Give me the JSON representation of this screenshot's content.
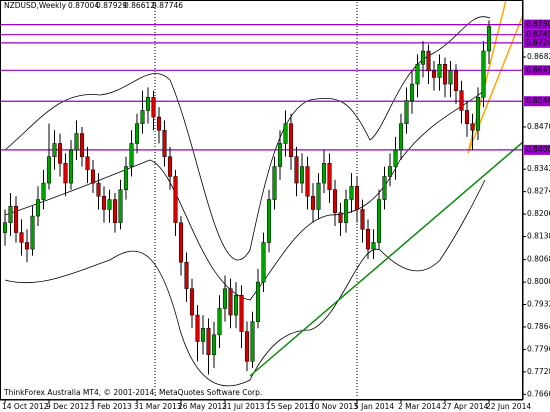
{
  "chart_data": {
    "type": "candlestick",
    "symbol": "NZDUSD,Weekly",
    "quote": {
      "open": 0.87004,
      "high": 0.87929,
      "low": 0.86612,
      "close": 0.87746
    },
    "footer": "ThinkForex Australia MT4, © 2001-2014, MetaQuotes Software Corp.",
    "up_color": "#00a000",
    "down_color": "#d00000",
    "wick_color": "#000000",
    "level_color": "#9900cc",
    "categories": [
      "14 Oct 2012",
      null,
      null,
      null,
      null,
      null,
      null,
      null,
      "9 Dec 2012",
      null,
      null,
      null,
      null,
      null,
      null,
      null,
      "3 Feb 2013",
      null,
      null,
      null,
      null,
      null,
      null,
      null,
      "31 Mar 2013",
      null,
      null,
      null,
      null,
      null,
      null,
      null,
      "26 May 2013",
      null,
      null,
      null,
      null,
      null,
      null,
      null,
      "21 Jul 2013",
      null,
      null,
      null,
      null,
      null,
      null,
      null,
      "15 Sep 2013",
      null,
      null,
      null,
      null,
      null,
      null,
      null,
      "10 Nov 2013",
      null,
      null,
      null,
      null,
      null,
      null,
      null,
      "5 Jan 2014",
      null,
      null,
      null,
      null,
      null,
      null,
      null,
      "2 Mar 2014",
      null,
      null,
      null,
      null,
      null,
      null,
      null,
      "27 Apr 2014",
      null,
      null,
      null,
      null,
      null,
      null,
      null,
      "22 Jun 2014"
    ],
    "open": [
      0.815,
      0.818,
      0.823,
      0.815,
      0.812,
      0.81,
      0.82,
      0.825,
      0.83,
      0.838,
      0.842,
      0.836,
      0.83,
      0.84,
      0.845,
      0.838,
      0.834,
      0.83,
      0.826,
      0.822,
      0.825,
      0.818,
      0.828,
      0.835,
      0.842,
      0.848,
      0.852,
      0.856,
      0.85,
      0.846,
      0.838,
      0.832,
      0.818,
      0.806,
      0.798,
      0.79,
      0.782,
      0.786,
      0.778,
      0.784,
      0.792,
      0.798,
      0.79,
      0.796,
      0.785,
      0.776,
      0.788,
      0.8,
      0.812,
      0.825,
      0.835,
      0.842,
      0.848,
      0.838,
      0.83,
      0.835,
      0.826,
      0.822,
      0.83,
      0.836,
      0.828,
      0.821,
      0.818,
      0.825,
      0.829,
      0.822,
      0.816,
      0.81,
      0.812,
      0.825,
      0.832,
      0.835,
      0.84,
      0.848,
      0.855,
      0.86,
      0.866,
      0.87,
      0.864,
      0.862,
      0.866,
      0.86,
      0.864,
      0.858,
      0.852,
      0.848,
      0.846,
      0.856,
      0.87004
    ],
    "high": [
      0.822,
      0.827,
      0.826,
      0.819,
      0.816,
      0.823,
      0.829,
      0.834,
      0.848,
      0.846,
      0.845,
      0.839,
      0.843,
      0.849,
      0.847,
      0.841,
      0.837,
      0.833,
      0.829,
      0.828,
      0.827,
      0.831,
      0.838,
      0.846,
      0.851,
      0.858,
      0.859,
      0.858,
      0.853,
      0.849,
      0.841,
      0.834,
      0.82,
      0.809,
      0.801,
      0.793,
      0.79,
      0.789,
      0.788,
      0.796,
      0.802,
      0.801,
      0.8,
      0.799,
      0.788,
      0.791,
      0.804,
      0.815,
      0.828,
      0.838,
      0.846,
      0.852,
      0.851,
      0.841,
      0.839,
      0.838,
      0.83,
      0.833,
      0.84,
      0.839,
      0.831,
      0.824,
      0.828,
      0.833,
      0.832,
      0.825,
      0.819,
      0.816,
      0.828,
      0.835,
      0.839,
      0.844,
      0.851,
      0.859,
      0.864,
      0.869,
      0.873,
      0.872,
      0.867,
      0.869,
      0.868,
      0.867,
      0.866,
      0.861,
      0.855,
      0.851,
      0.859,
      0.873,
      0.87929
    ],
    "low": [
      0.811,
      0.814,
      0.812,
      0.808,
      0.806,
      0.808,
      0.817,
      0.822,
      0.828,
      0.834,
      0.832,
      0.826,
      0.828,
      0.837,
      0.835,
      0.83,
      0.827,
      0.822,
      0.818,
      0.818,
      0.815,
      0.816,
      0.825,
      0.832,
      0.839,
      0.845,
      0.848,
      0.846,
      0.842,
      0.835,
      0.828,
      0.814,
      0.802,
      0.794,
      0.786,
      0.776,
      0.778,
      0.772,
      0.774,
      0.78,
      0.788,
      0.786,
      0.786,
      0.78,
      0.773,
      0.774,
      0.786,
      0.797,
      0.809,
      0.822,
      0.831,
      0.838,
      0.834,
      0.826,
      0.827,
      0.822,
      0.818,
      0.819,
      0.827,
      0.824,
      0.817,
      0.814,
      0.815,
      0.821,
      0.818,
      0.812,
      0.807,
      0.807,
      0.81,
      0.822,
      0.829,
      0.831,
      0.837,
      0.845,
      0.851,
      0.856,
      0.862,
      0.86,
      0.858,
      0.858,
      0.856,
      0.856,
      0.854,
      0.848,
      0.844,
      0.84,
      0.843,
      0.853,
      0.86612
    ],
    "close": [
      0.818,
      0.823,
      0.815,
      0.812,
      0.81,
      0.82,
      0.825,
      0.83,
      0.838,
      0.842,
      0.836,
      0.83,
      0.84,
      0.845,
      0.838,
      0.834,
      0.83,
      0.826,
      0.822,
      0.825,
      0.818,
      0.828,
      0.835,
      0.842,
      0.848,
      0.852,
      0.856,
      0.85,
      0.846,
      0.838,
      0.832,
      0.818,
      0.806,
      0.798,
      0.79,
      0.782,
      0.786,
      0.778,
      0.784,
      0.792,
      0.798,
      0.79,
      0.796,
      0.785,
      0.776,
      0.788,
      0.8,
      0.812,
      0.825,
      0.835,
      0.842,
      0.848,
      0.838,
      0.83,
      0.835,
      0.826,
      0.822,
      0.83,
      0.836,
      0.828,
      0.821,
      0.818,
      0.825,
      0.829,
      0.822,
      0.816,
      0.81,
      0.812,
      0.825,
      0.832,
      0.835,
      0.84,
      0.848,
      0.855,
      0.86,
      0.866,
      0.87,
      0.864,
      0.862,
      0.866,
      0.86,
      0.864,
      0.858,
      0.852,
      0.848,
      0.846,
      0.856,
      0.87004,
      0.87746
    ],
    "ylim": [
      0.76487,
      0.88487
    ],
    "yticks": [
      {
        "value": 0.8682,
        "label": "0.86820"
      },
      {
        "value": 0.847,
        "label": "0.84700"
      },
      {
        "value": 0.8342,
        "label": "0.83420"
      },
      {
        "value": 0.8274,
        "label": "0.82740"
      },
      {
        "value": 0.8206,
        "label": "0.82060"
      },
      {
        "value": 0.8138,
        "label": "0.81380"
      },
      {
        "value": 0.8068,
        "label": "0.80680"
      },
      {
        "value": 0.8,
        "label": "0.80000"
      },
      {
        "value": 0.7932,
        "label": "0.79320"
      },
      {
        "value": 0.7864,
        "label": "0.78640"
      },
      {
        "value": 0.7796,
        "label": "0.77960"
      },
      {
        "value": 0.7728,
        "label": "0.77280"
      },
      {
        "value": 0.766,
        "label": "0.76600"
      }
    ],
    "levels": [
      0.87802,
      0.87497,
      0.87249,
      0.86417,
      {
        "value": 0.8548,
        "label": "0.85480"
      },
      0.84006
    ]
  }
}
